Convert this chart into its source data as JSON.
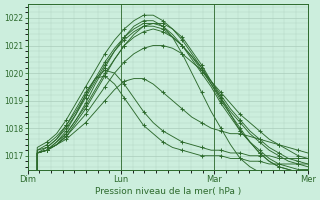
{
  "bg_color": "#cceedd",
  "line_color": "#2d6a2d",
  "grid_color": "#aaccbb",
  "xlabel": "Pression niveau de la mer( hPa )",
  "xtick_labels": [
    "Dim",
    "Lun",
    "Mar",
    "Mer"
  ],
  "xtick_positions": [
    0,
    48,
    96,
    144
  ],
  "ylim": [
    1016.5,
    1022.5
  ],
  "yticks": [
    1017,
    1018,
    1019,
    1020,
    1021,
    1022
  ],
  "total_hours": 144,
  "series": [
    [
      0,
      1017.1,
      1017.2,
      1017.4,
      1017.6,
      1017.9,
      1018.2,
      1018.6,
      1019.0,
      1019.4,
      1019.7,
      1019.8,
      1019.8,
      1019.6,
      1019.3,
      1019.0,
      1018.7,
      1018.4,
      1018.2,
      1018.0,
      1017.9,
      1017.8,
      1017.8,
      1017.7,
      1017.6,
      1017.5,
      1017.4,
      1017.3,
      1017.2,
      1017.1
    ],
    [
      0,
      1017.1,
      1017.2,
      1017.4,
      1017.7,
      1018.1,
      1018.5,
      1019.0,
      1019.5,
      1020.0,
      1020.4,
      1020.7,
      1020.9,
      1021.0,
      1021.0,
      1020.9,
      1020.7,
      1020.4,
      1020.1,
      1019.7,
      1019.3,
      1018.9,
      1018.5,
      1018.2,
      1017.9,
      1017.6,
      1017.4,
      1017.2,
      1017.0,
      1016.9
    ],
    [
      0,
      1017.1,
      1017.2,
      1017.5,
      1017.8,
      1018.3,
      1018.8,
      1019.4,
      1020.0,
      1020.5,
      1021.0,
      1021.3,
      1021.5,
      1021.6,
      1021.5,
      1021.3,
      1021.0,
      1020.6,
      1020.2,
      1019.7,
      1019.2,
      1018.7,
      1018.3,
      1017.9,
      1017.6,
      1017.3,
      1017.1,
      1016.9,
      1016.8,
      1016.7
    ],
    [
      0,
      1017.2,
      1017.3,
      1017.6,
      1018.0,
      1018.5,
      1019.1,
      1019.7,
      1020.3,
      1020.8,
      1021.2,
      1021.5,
      1021.7,
      1021.7,
      1021.6,
      1021.3,
      1021.0,
      1020.6,
      1020.1,
      1019.6,
      1019.1,
      1018.6,
      1018.2,
      1017.8,
      1017.5,
      1017.2,
      1017.0,
      1016.8,
      1016.7,
      1016.6
    ],
    [
      0,
      1017.2,
      1017.4,
      1017.7,
      1018.1,
      1018.6,
      1019.2,
      1019.8,
      1020.4,
      1020.9,
      1021.3,
      1021.6,
      1021.8,
      1021.8,
      1021.7,
      1021.4,
      1021.0,
      1020.5,
      1020.0,
      1019.5,
      1018.9,
      1018.4,
      1017.9,
      1017.5,
      1017.2,
      1016.9,
      1016.7,
      1016.6,
      1016.5,
      1016.5
    ],
    [
      0,
      1017.3,
      1017.5,
      1017.8,
      1018.3,
      1018.9,
      1019.5,
      1020.1,
      1020.7,
      1021.2,
      1021.6,
      1021.9,
      1022.1,
      1022.1,
      1021.9,
      1021.6,
      1021.2,
      1020.7,
      1020.2,
      1019.6,
      1019.0,
      1018.5,
      1017.9,
      1017.5,
      1017.1,
      1016.8,
      1016.6,
      1016.5,
      1016.4,
      1016.4
    ],
    [
      0,
      1017.1,
      1017.2,
      1017.4,
      1017.7,
      1018.2,
      1018.7,
      1019.3,
      1019.9,
      1020.5,
      1021.0,
      1021.4,
      1021.7,
      1021.8,
      1021.8,
      1021.6,
      1021.3,
      1020.8,
      1020.3,
      1019.7,
      1019.1,
      1018.5,
      1018.0,
      1017.5,
      1017.1,
      1016.8,
      1016.6,
      1016.5,
      1016.4,
      1016.4
    ],
    [
      0,
      1017.1,
      1017.2,
      1017.4,
      1017.8,
      1018.3,
      1018.9,
      1019.6,
      1020.2,
      1020.8,
      1021.3,
      1021.7,
      1021.9,
      1021.9,
      1021.7,
      1021.3,
      1020.7,
      1020.0,
      1019.3,
      1018.6,
      1018.0,
      1017.4,
      1016.9,
      1016.6,
      1016.4,
      1016.3,
      1016.2,
      1016.2,
      1016.2,
      1016.2
    ]
  ],
  "bump_series": [
    [
      0,
      1017.1,
      1017.3,
      1017.6,
      1018.1,
      1018.7,
      1019.3,
      1019.8,
      1019.9,
      1019.6,
      1019.1,
      1018.6,
      1018.1,
      1017.8,
      1017.5,
      1017.3,
      1017.2,
      1017.1,
      1017.0,
      1017.0,
      1017.0,
      1016.9,
      1016.9,
      1016.8,
      1016.8,
      1016.7,
      1016.7,
      1016.7,
      1016.7,
      1016.7
    ],
    [
      0,
      1017.1,
      1017.2,
      1017.5,
      1017.9,
      1018.5,
      1019.2,
      1019.8,
      1020.1,
      1020.0,
      1019.6,
      1019.1,
      1018.6,
      1018.2,
      1017.9,
      1017.7,
      1017.5,
      1017.4,
      1017.3,
      1017.2,
      1017.2,
      1017.1,
      1017.1,
      1017.0,
      1017.0,
      1017.0,
      1016.9,
      1016.9,
      1016.9,
      1016.9
    ]
  ]
}
